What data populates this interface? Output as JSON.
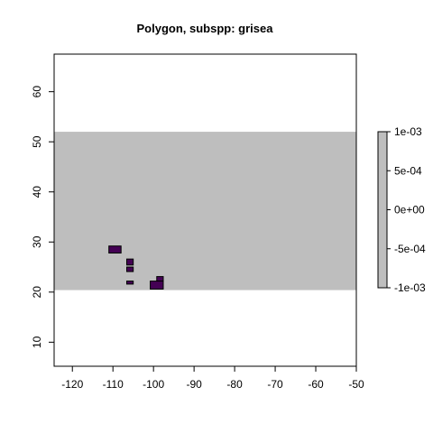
{
  "chart_data": {
    "type": "heatmap",
    "title": "Polygon, subspp: grisea",
    "xlabel": "",
    "ylabel": "",
    "xlim": [
      -124.5,
      -50
    ],
    "ylim": [
      5.2,
      67.5
    ],
    "x_ticks": [
      -120,
      -110,
      -100,
      -90,
      -80,
      -70,
      -60,
      -50
    ],
    "y_ticks": [
      10,
      20,
      30,
      40,
      50,
      60
    ],
    "raster_extent": {
      "xmin": -124.5,
      "xmax": -50,
      "ymin": 20.4,
      "ymax": 52
    },
    "raster_color": "#bebebe",
    "cell_color": "#440154",
    "cells": [
      {
        "xmin": -111,
        "xmax": -108,
        "ymin": 27.8,
        "ymax": 29.2
      },
      {
        "xmin": -106.6,
        "xmax": -105,
        "ymin": 25.4,
        "ymax": 26.6
      },
      {
        "xmin": -106.6,
        "xmax": -105,
        "ymin": 24.1,
        "ymax": 25
      },
      {
        "xmin": -106.6,
        "xmax": -105,
        "ymin": 21.6,
        "ymax": 22.2
      },
      {
        "xmin": -99.2,
        "xmax": -97.6,
        "ymin": 22.2,
        "ymax": 23.1
      },
      {
        "xmin": -100.8,
        "xmax": -97.6,
        "ymin": 20.6,
        "ymax": 22.2
      }
    ],
    "legend": {
      "placement": "right",
      "min": -0.001,
      "max": 0.001,
      "labels": [
        "1e-03",
        "5e-04",
        "0e+00",
        "-5e-04",
        "-1e-03"
      ],
      "label_values": [
        0.001,
        0.0005,
        0,
        -0.0005,
        -0.001
      ]
    }
  }
}
